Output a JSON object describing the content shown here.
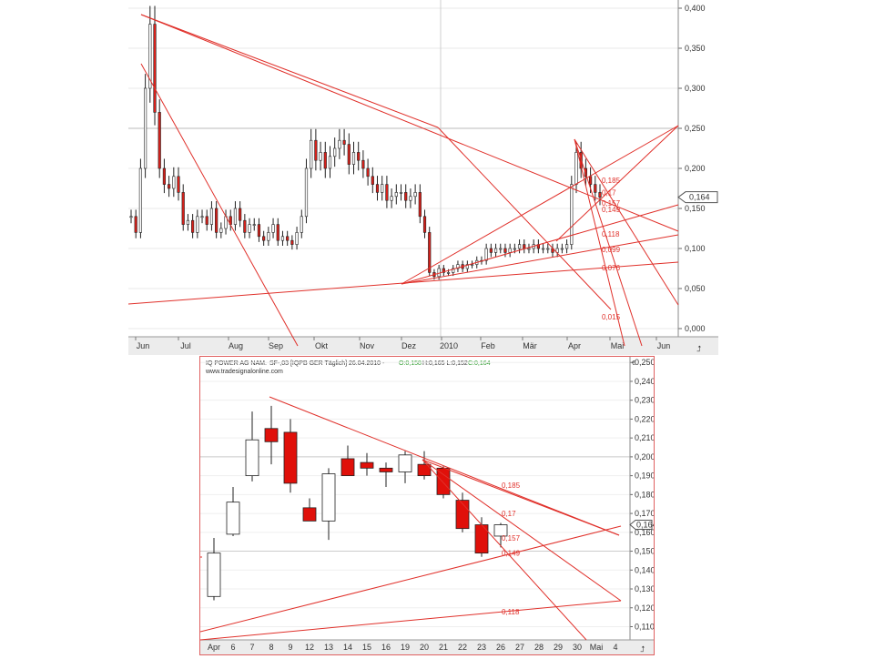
{
  "chart_data": [
    {
      "type": "candlestick",
      "id": "overview",
      "x_ticks": [
        "Jun",
        "Jul",
        "Aug",
        "Sep",
        "Okt",
        "Nov",
        "Dez",
        "2010",
        "Feb",
        "Mär",
        "Apr",
        "Mai",
        "Jun"
      ],
      "y_ticks": [
        "0,400",
        "0,350",
        "0,300",
        "0,250",
        "0,200",
        "0,150",
        "0,100",
        "0,050",
        "0,000"
      ],
      "ylim": [
        0.0,
        0.4
      ],
      "last_price": "0,164",
      "fib_levels": [
        "0,185",
        "0,17",
        "0,157",
        "0,149",
        "0,118",
        "0,099",
        "0,076",
        "0,015"
      ],
      "grid": "light",
      "series": [
        {
          "values": [
            0.14,
            0.12,
            0.2,
            0.3,
            0.38,
            0.27,
            0.2,
            0.18,
            0.175,
            0.19,
            0.17,
            0.13,
            0.135,
            0.12,
            0.14,
            0.14,
            0.13,
            0.15,
            0.12,
            0.125,
            0.14,
            0.13,
            0.15,
            0.135,
            0.12,
            0.13,
            0.13,
            0.115,
            0.11,
            0.12,
            0.13,
            0.11,
            0.115,
            0.11,
            0.105,
            0.12,
            0.14,
            0.2,
            0.235,
            0.21,
            0.22,
            0.2,
            0.215,
            0.225,
            0.235,
            0.23,
            0.205,
            0.22,
            0.21,
            0.2,
            0.19,
            0.18,
            0.17,
            0.18,
            0.16,
            0.165,
            0.17,
            0.17,
            0.16,
            0.165,
            0.17,
            0.14,
            0.12,
            0.07,
            0.065,
            0.075,
            0.07,
            0.07,
            0.075,
            0.08,
            0.075,
            0.08,
            0.08,
            0.085,
            0.085,
            0.1,
            0.095,
            0.1,
            0.1,
            0.095,
            0.1,
            0.1,
            0.105,
            0.1,
            0.1,
            0.105,
            0.1,
            0.1,
            0.1,
            0.095,
            0.1,
            0.1,
            0.105,
            0.18,
            0.22,
            0.2,
            0.19,
            0.18,
            0.17,
            0.164
          ]
        }
      ]
    },
    {
      "type": "candlestick",
      "id": "detail",
      "header": {
        "name": "IQ POWER AG NAM.",
        "symbol": "SF-,03 [IQPB GER Täglich] 26.04.2010 -",
        "open": "O:0,158",
        "hl": "H:0,165 L:0,152",
        "close": "C:0,164"
      },
      "watermark": "www.tradesignalonline.com",
      "currency": "€",
      "x_ticks": [
        "Apr",
        "6",
        "7",
        "8",
        "9",
        "12",
        "13",
        "14",
        "15",
        "16",
        "19",
        "20",
        "21",
        "22",
        "23",
        "26",
        "27",
        "28",
        "29",
        "30",
        "Mai",
        "4"
      ],
      "y_ticks": [
        "0,250",
        "0,240",
        "0,230",
        "0,220",
        "0,210",
        "0,200",
        "0,190",
        "0,180",
        "0,170",
        "0,160",
        "0,150",
        "0,140",
        "0,130",
        "0,120",
        "0,110"
      ],
      "ylim": [
        0.103,
        0.253
      ],
      "last_price": "0,164",
      "fib_levels": [
        "0,185",
        "0,17",
        "0,157",
        "0,149",
        "0,118"
      ],
      "candles": [
        {
          "date": "Apr",
          "o": 0.126,
          "h": 0.157,
          "l": 0.124,
          "c": 0.149
        },
        {
          "date": "6",
          "o": 0.159,
          "h": 0.184,
          "l": 0.158,
          "c": 0.176
        },
        {
          "date": "7",
          "o": 0.19,
          "h": 0.224,
          "l": 0.187,
          "c": 0.209
        },
        {
          "date": "8",
          "o": 0.215,
          "h": 0.227,
          "l": 0.196,
          "c": 0.208
        },
        {
          "date": "9",
          "o": 0.213,
          "h": 0.22,
          "l": 0.181,
          "c": 0.186
        },
        {
          "date": "12",
          "o": 0.173,
          "h": 0.178,
          "l": 0.166,
          "c": 0.166
        },
        {
          "date": "13",
          "o": 0.166,
          "h": 0.194,
          "l": 0.156,
          "c": 0.191
        },
        {
          "date": "14",
          "o": 0.199,
          "h": 0.206,
          "l": 0.19,
          "c": 0.19
        },
        {
          "date": "15",
          "o": 0.197,
          "h": 0.202,
          "l": 0.19,
          "c": 0.194
        },
        {
          "date": "16",
          "o": 0.194,
          "h": 0.197,
          "l": 0.184,
          "c": 0.192
        },
        {
          "date": "19",
          "o": 0.192,
          "h": 0.203,
          "l": 0.186,
          "c": 0.201
        },
        {
          "date": "20",
          "o": 0.196,
          "h": 0.203,
          "l": 0.188,
          "c": 0.19
        },
        {
          "date": "21",
          "o": 0.194,
          "h": 0.195,
          "l": 0.178,
          "c": 0.18
        },
        {
          "date": "22",
          "o": 0.177,
          "h": 0.181,
          "l": 0.16,
          "c": 0.162
        },
        {
          "date": "23",
          "o": 0.164,
          "h": 0.168,
          "l": 0.147,
          "c": 0.149
        },
        {
          "date": "26",
          "o": 0.158,
          "h": 0.165,
          "l": 0.152,
          "c": 0.164
        }
      ]
    }
  ]
}
